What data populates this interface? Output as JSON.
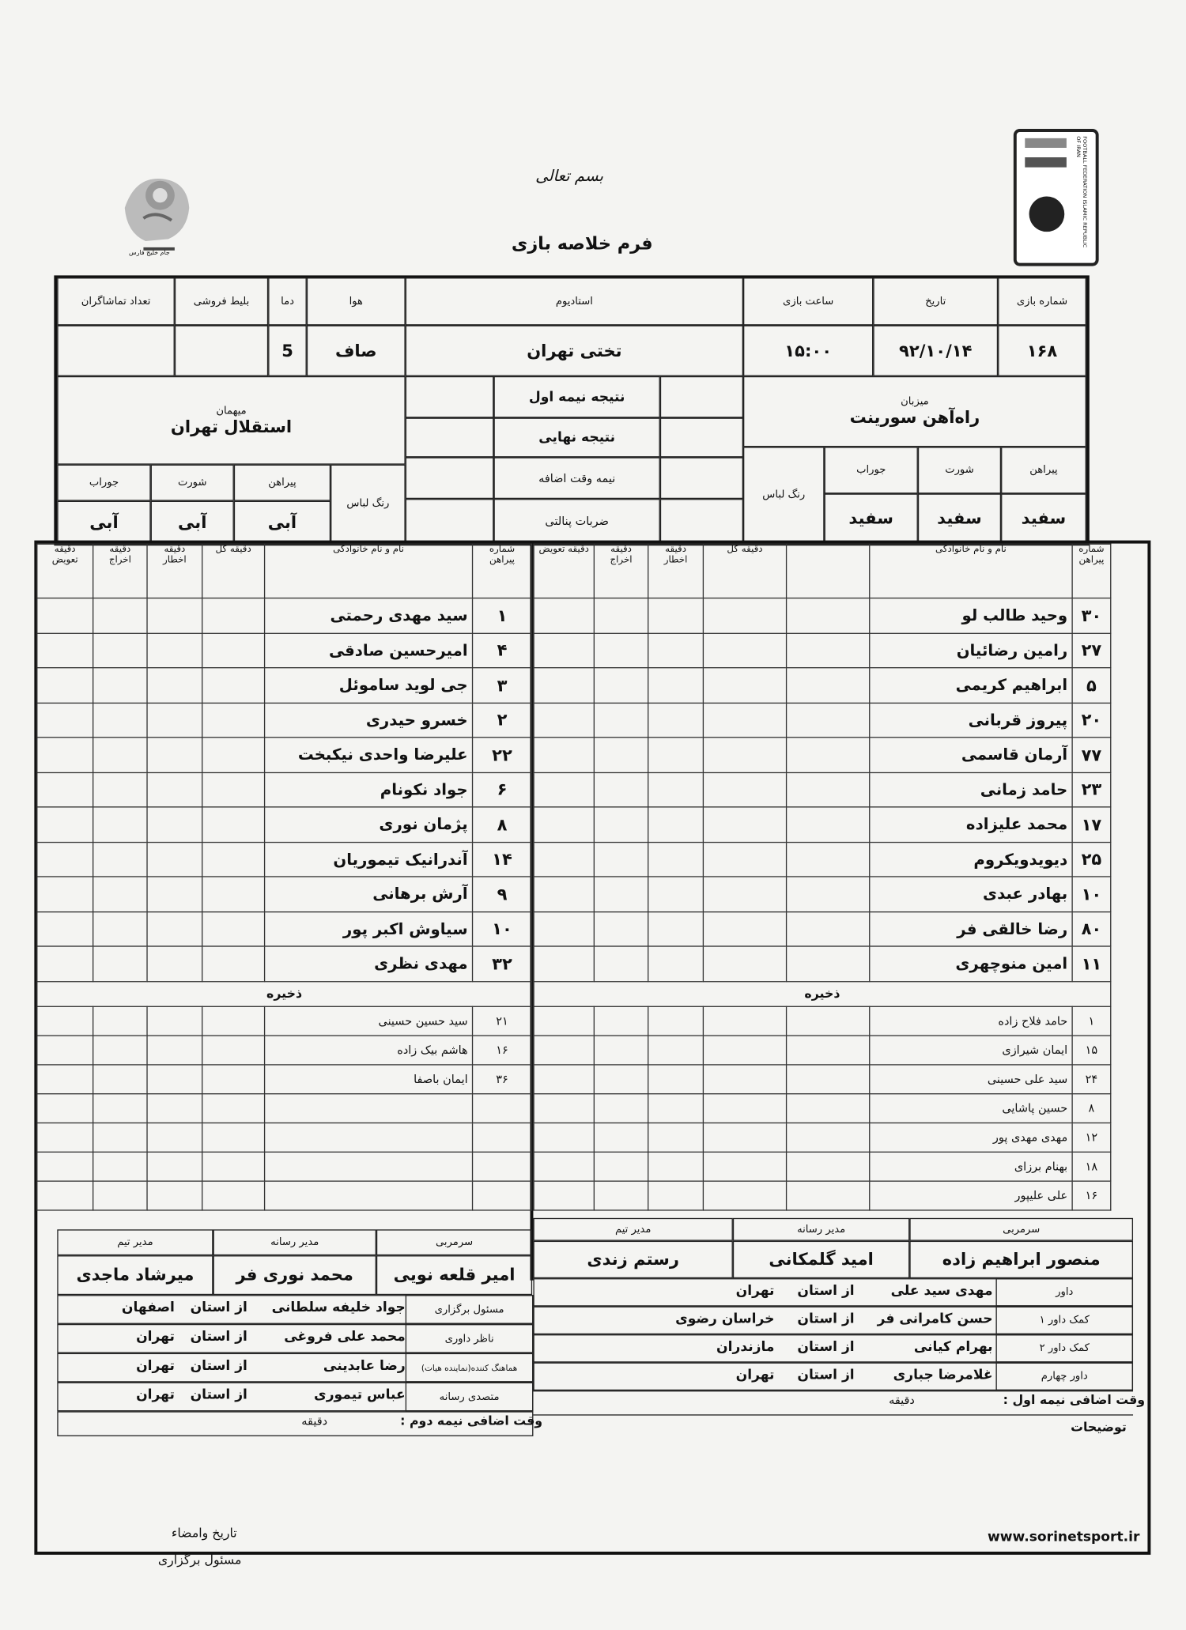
{
  "header": {
    "basmala": "بسم تعالی",
    "title": "فرم خلاصه بازی",
    "website": "www.sorinetsport.ir",
    "sign_label_1": "تاریخ وامضاء",
    "sign_label_2": "مسئول برگزاری",
    "logo_right_text": "FOOTBALL FEDERATION ISLAMIC REPUBLIC OF IRAN",
    "logo_left_text": "جام خلیج فارس"
  },
  "match": {
    "labels": {
      "match_no": "شماره بازی",
      "date": "تاریخ",
      "time": "ساعت بازی",
      "stadium": "استادیوم",
      "weather": "هوا",
      "temp": "دما",
      "tickets": "بلیط فروشی",
      "spectators": "تعداد تماشاگران",
      "host": "میزبان",
      "guest": "میهمان",
      "first_half": "نتیجه نیمه اول",
      "final": "نتیجه نهایی",
      "extra_time": "نیمه وقت اضافه",
      "penalties": "ضربات پنالتی",
      "kit_color": "رنگ لباس",
      "shirt": "پیراهن",
      "shorts": "شورت",
      "socks": "جوراب"
    },
    "match_no": "۱۶۸",
    "date": "۹۲/۱۰/۱۴",
    "time": "۱۵:۰۰",
    "stadium": "تختی تهران",
    "weather": "صاف",
    "temp": "5",
    "tickets": "",
    "spectators": "",
    "host": {
      "name": "راه‌آهن سورینت",
      "shirt": "سفید",
      "shorts": "سفید",
      "socks": "سفید"
    },
    "guest": {
      "name": "استقلال تهران",
      "shirt": "آبی",
      "shorts": "آبی",
      "socks": "آبی"
    }
  },
  "roster_headers": {
    "shirt_no": "شماره پیراهن",
    "name": "نام و نام خانوادگی",
    "goal": "دقیقه گل",
    "warning": "دقیقه اخطار",
    "ejection": "دقیقه اخراج",
    "substitution": "دقیقه تعویض",
    "reserves": "ذخیره"
  },
  "host_roster": {
    "starters": [
      [
        "۳۰",
        "وحید طالب لو"
      ],
      [
        "۲۷",
        "رامین رضائیان"
      ],
      [
        "۵",
        "ابراهیم کریمی"
      ],
      [
        "۲۰",
        "پیروز قربانی"
      ],
      [
        "۷۷",
        "آرمان قاسمی"
      ],
      [
        "۲۳",
        "حامد زمانی"
      ],
      [
        "۱۷",
        "محمد علیزاده"
      ],
      [
        "۲۵",
        "دیویدویکروم"
      ],
      [
        "۱۰",
        "بهادر عبدی"
      ],
      [
        "۸۰",
        "رضا خالقی فر"
      ],
      [
        "۱۱",
        "امین منوچهری"
      ]
    ],
    "reserves": [
      [
        "۱",
        "حامد فلاح زاده"
      ],
      [
        "۱۵",
        "ایمان شیرازی"
      ],
      [
        "۲۴",
        "سید علی حسینی"
      ],
      [
        "۸",
        "حسین پاشایی"
      ],
      [
        "۱۲",
        "مهدی مهدی پور"
      ],
      [
        "۱۸",
        "بهنام برزای"
      ],
      [
        "۱۶",
        "علی علیپور"
      ]
    ]
  },
  "guest_roster": {
    "starters": [
      [
        "۱",
        "سید مهدی رحمتی"
      ],
      [
        "۴",
        "امیرحسین صادقی"
      ],
      [
        "۳",
        "جی لوید ساموئل"
      ],
      [
        "۲",
        "خسرو حیدری"
      ],
      [
        "۲۲",
        "علیرضا واحدی نیکبخت"
      ],
      [
        "۶",
        "جواد نکونام"
      ],
      [
        "۸",
        "پژمان نوری"
      ],
      [
        "۱۴",
        "آندرانیک تیموریان"
      ],
      [
        "۹",
        "آرش برهانی"
      ],
      [
        "۱۰",
        "سیاوش اکبر پور"
      ],
      [
        "۳۲",
        "مهدی نظری"
      ]
    ],
    "reserves": [
      [
        "۲۱",
        "سید حسین حسینی"
      ],
      [
        "۱۶",
        "هاشم بیک زاده"
      ],
      [
        "۳۶",
        "ایمان باصفا"
      ],
      [
        "",
        ""
      ],
      [
        "",
        ""
      ],
      [
        "",
        ""
      ],
      [
        "",
        ""
      ]
    ]
  },
  "staff": {
    "labels": {
      "coach": "سرمربی",
      "media": "مدیر رسانه",
      "manager": "مدیر تیم"
    },
    "host": {
      "coach": "منصور ابراهیم زاده",
      "media": "امید گلمکانی",
      "manager": "رستم زندی"
    },
    "guest": {
      "coach": "امیر قلعه نویی",
      "media": "محمد نوری فر",
      "manager": "میرشاد ماجدی"
    }
  },
  "from_province": "از استان",
  "referees": [
    {
      "role": "داور",
      "name": "مهدی سید علی",
      "province": "تهران"
    },
    {
      "role": "کمک داور ۱",
      "name": "حسن کامرانی فر",
      "province": "خراسان رضوی"
    },
    {
      "role": "کمک داور ۲",
      "name": "بهرام کیانی",
      "province": "مازندران"
    },
    {
      "role": "داور چهارم",
      "name": "غلامرضا جباری",
      "province": "تهران"
    }
  ],
  "officials": [
    {
      "role": "مسئول برگزاری",
      "name": "جواد خلیفه سلطانی",
      "province": "اصفهان"
    },
    {
      "role": "ناظر داوری",
      "name": "محمد علی فروغی",
      "province": "تهران"
    },
    {
      "role": "هماهنگ کننده(نماینده هیات)",
      "name": "رضا عابدینی",
      "province": "تهران"
    },
    {
      "role": "متصدی رسانه",
      "name": "عباس تیموری",
      "province": "تهران"
    }
  ],
  "extra": {
    "first_half_label": "وقت اضافی نیمه اول :",
    "second_half_label": "وقت اضافی نیمه دوم :",
    "minute": "دقیقه",
    "notes_label": "توضیحات"
  }
}
